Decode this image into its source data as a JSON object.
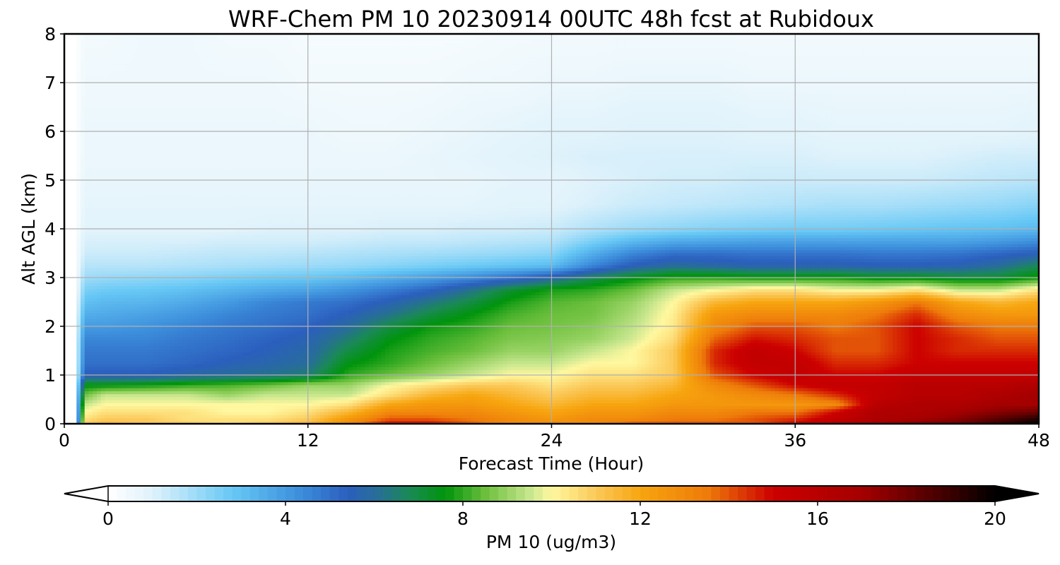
{
  "chart_data": {
    "type": "heatmap",
    "title": "WRF-Chem PM 10  20230914 00UTC 48h fcst at Rubidoux",
    "xlabel": "Forecast Time (Hour)",
    "ylabel": "Alt AGL (km)",
    "xlim": [
      0,
      48
    ],
    "ylim": [
      0,
      8
    ],
    "x_ticks": [
      "0",
      "12",
      "24",
      "36",
      "48"
    ],
    "y_ticks": [
      "0",
      "1",
      "2",
      "3",
      "4",
      "5",
      "6",
      "7",
      "8"
    ],
    "grid": true,
    "colorbar": {
      "label": "PM 10  (ug/m3)",
      "orientation": "horizontal",
      "placement": "bottom",
      "extend": "both",
      "min": 0,
      "max": 20,
      "ticks": [
        "0",
        "4",
        "8",
        "12",
        "16",
        "20"
      ],
      "color_stops": [
        {
          "value": 0,
          "color": "#ffffff"
        },
        {
          "value": 1,
          "color": "#dff2fb"
        },
        {
          "value": 2.8,
          "color": "#67c8f5"
        },
        {
          "value": 4.3,
          "color": "#3d8fdc"
        },
        {
          "value": 5.4,
          "color": "#2b5fbe"
        },
        {
          "value": 6.1,
          "color": "#276f95"
        },
        {
          "value": 6.8,
          "color": "#1a8a55"
        },
        {
          "value": 7.6,
          "color": "#00940c"
        },
        {
          "value": 8.5,
          "color": "#6bbf3c"
        },
        {
          "value": 9.5,
          "color": "#c6e68d"
        },
        {
          "value": 10,
          "color": "#fff8a0"
        },
        {
          "value": 11,
          "color": "#fbc95a"
        },
        {
          "value": 12,
          "color": "#f7a50f"
        },
        {
          "value": 13.5,
          "color": "#ee7c0a"
        },
        {
          "value": 15,
          "color": "#cc0000"
        },
        {
          "value": 17,
          "color": "#a40000"
        },
        {
          "value": 19,
          "color": "#3a0000"
        },
        {
          "value": 20,
          "color": "#000000"
        }
      ]
    },
    "x": [
      0,
      0.5,
      1,
      2,
      4,
      6,
      8,
      10,
      12,
      14,
      16,
      18,
      20,
      22,
      24,
      26,
      28,
      30,
      32,
      34,
      36,
      38,
      40,
      42,
      44,
      46,
      48
    ],
    "y": [
      0,
      0.1,
      0.25,
      0.4,
      0.6,
      0.8,
      1,
      1.25,
      1.5,
      1.75,
      2,
      2.25,
      2.5,
      2.75,
      3,
      3.25,
      3.5,
      3.75,
      4,
      4.5,
      5,
      5.5,
      6,
      7,
      8
    ],
    "z": [
      [
        0,
        0,
        11,
        11.5,
        11,
        11,
        10.5,
        11,
        11.5,
        13,
        15,
        15,
        14,
        13,
        13,
        13,
        14,
        14,
        14,
        14,
        15,
        16,
        17,
        17.5,
        18,
        19,
        20
      ],
      [
        0,
        0,
        10.5,
        11,
        11,
        10.5,
        10.5,
        10.5,
        11,
        12.5,
        14,
        14,
        13.5,
        13,
        12.5,
        13,
        13,
        13.5,
        13.5,
        14,
        14.5,
        15.5,
        16.5,
        17,
        17.5,
        18.5,
        19.5
      ],
      [
        0,
        0,
        10,
        10.5,
        10.5,
        10.5,
        10,
        10,
        10.5,
        11.5,
        13,
        13,
        13,
        12.5,
        12,
        12.5,
        12.5,
        13,
        13,
        13.5,
        13.5,
        15,
        16.5,
        16.5,
        17,
        17.5,
        18
      ],
      [
        0,
        0,
        9.5,
        10,
        10,
        10,
        10,
        10,
        10,
        10.5,
        12,
        12.5,
        12.5,
        12,
        11.5,
        12,
        12,
        12.5,
        12.5,
        12.5,
        12.5,
        13,
        16,
        16.5,
        16.5,
        17,
        17
      ],
      [
        0,
        0,
        8.5,
        9.5,
        9.5,
        9.5,
        9,
        9.5,
        9.5,
        9.5,
        10.5,
        11.5,
        12,
        11.5,
        11,
        11.5,
        11.5,
        12,
        12.5,
        13,
        13.5,
        14.5,
        15.5,
        16,
        16,
        16.5,
        17
      ],
      [
        0,
        0,
        7.5,
        7.5,
        7.7,
        8,
        8.2,
        8.5,
        9,
        9,
        10,
        10.5,
        11,
        11,
        10.5,
        11,
        11,
        11.5,
        13,
        14,
        15,
        15.5,
        15.5,
        16,
        16,
        16,
        16.5
      ],
      [
        0,
        0,
        5.5,
        5.5,
        5.5,
        5.8,
        6,
        6.2,
        6.5,
        8,
        8.5,
        9,
        9.5,
        10,
        10,
        10.5,
        10.5,
        11,
        14,
        15,
        15.5,
        15,
        15,
        15.5,
        15.5,
        15.5,
        15.5
      ],
      [
        0,
        0,
        5,
        5,
        5,
        5.2,
        5.5,
        5.7,
        6,
        7.5,
        8,
        8.5,
        9,
        9.5,
        9.5,
        10,
        10,
        11,
        14.5,
        15.5,
        15.5,
        14.5,
        14.5,
        15,
        15,
        15,
        15
      ],
      [
        0,
        0,
        4.8,
        4.8,
        4.8,
        5,
        5.2,
        5.5,
        5.8,
        7,
        7.8,
        8.2,
        8.5,
        9,
        9,
        9.5,
        10,
        11,
        14.5,
        15.5,
        15,
        14,
        14,
        15,
        14.5,
        14.5,
        14.5
      ],
      [
        0,
        0,
        4.5,
        4.5,
        4.5,
        4.8,
        5,
        5.3,
        5.6,
        6.5,
        7.5,
        8,
        8.3,
        8.7,
        8.8,
        9,
        9.6,
        10.6,
        13.8,
        14.8,
        14.5,
        14,
        14,
        15,
        14.5,
        14,
        14
      ],
      [
        0,
        0,
        4,
        4,
        4.2,
        4.5,
        4.8,
        5,
        5.3,
        6,
        7,
        7.7,
        8,
        8.5,
        8.6,
        8.8,
        9.4,
        10.3,
        13,
        14,
        14,
        13.5,
        14,
        15,
        14,
        13.5,
        13.5
      ],
      [
        0,
        0,
        3.5,
        3.6,
        3.8,
        4.1,
        4.5,
        4.8,
        5,
        5.5,
        6.2,
        7,
        7.6,
        8.2,
        8.5,
        8.6,
        9.2,
        10.2,
        12.5,
        13,
        13,
        13,
        13.5,
        14.5,
        13,
        12.5,
        12.5
      ],
      [
        0,
        0,
        3,
        3.2,
        3.3,
        3.6,
        4,
        4.5,
        4.8,
        5,
        5.6,
        6.3,
        7,
        7.8,
        8.3,
        8.5,
        9,
        10,
        11.5,
        12,
        12,
        12,
        12.5,
        13.5,
        12,
        11.5,
        12
      ],
      [
        0,
        0,
        2.5,
        2.7,
        2.8,
        3,
        3.3,
        3.6,
        3.8,
        4.2,
        4.7,
        5.3,
        6.2,
        7.2,
        7.8,
        8,
        8.5,
        9.5,
        10,
        10.5,
        10.5,
        10,
        10,
        10.5,
        9.5,
        9.5,
        10.5
      ],
      [
        0,
        0,
        2,
        2.1,
        2.2,
        2.3,
        2.5,
        2.7,
        2.8,
        3.1,
        3.5,
        3.9,
        4.4,
        5,
        5.8,
        6.8,
        7.5,
        8,
        8,
        7.8,
        7.8,
        7.8,
        7.5,
        7.5,
        7.2,
        7.2,
        7.8
      ],
      [
        0,
        0,
        1.6,
        1.6,
        1.6,
        1.7,
        1.8,
        1.9,
        2,
        2.1,
        2.3,
        2.5,
        2.7,
        2.9,
        3.1,
        4.5,
        5.5,
        6,
        5.8,
        5.6,
        5.6,
        5.6,
        5.5,
        5.5,
        5.6,
        6,
        6.8
      ],
      [
        0,
        0,
        1.3,
        1.3,
        1.3,
        1.4,
        1.5,
        1.5,
        1.6,
        1.7,
        1.8,
        1.9,
        2,
        2.1,
        2.3,
        3.5,
        4.5,
        5,
        5,
        4.9,
        4.9,
        4.9,
        4.8,
        4.8,
        4.9,
        5.2,
        5.5
      ],
      [
        0,
        0,
        1.1,
        1.1,
        1.1,
        1.1,
        1.2,
        1.2,
        1.2,
        1.3,
        1.4,
        1.4,
        1.5,
        1.6,
        1.7,
        2.5,
        3.2,
        3.6,
        3.7,
        3.8,
        3.8,
        3.8,
        3.8,
        3.8,
        3.8,
        4,
        4.3
      ],
      [
        0,
        0,
        0.9,
        0.9,
        0.9,
        0.9,
        0.9,
        1,
        1,
        1,
        1.1,
        1.1,
        1.2,
        1.2,
        1.3,
        1.7,
        2,
        2.2,
        2.4,
        2.5,
        2.6,
        2.6,
        2.7,
        2.8,
        2.9,
        3,
        3.2
      ],
      [
        0,
        0,
        0.8,
        0.8,
        0.8,
        0.8,
        0.8,
        0.8,
        0.8,
        0.8,
        0.8,
        0.8,
        0.8,
        0.9,
        0.9,
        1.1,
        1.3,
        1.4,
        1.5,
        1.6,
        1.7,
        1.8,
        1.8,
        1.9,
        2,
        2.1,
        2.3
      ],
      [
        0,
        0,
        0.7,
        0.7,
        0.7,
        0.7,
        0.7,
        0.7,
        0.7,
        0.7,
        0.7,
        0.7,
        0.7,
        0.8,
        0.8,
        1,
        1.1,
        1.2,
        1.2,
        1.3,
        1.3,
        1.3,
        1.3,
        1.3,
        1.4,
        1.5,
        1.6
      ],
      [
        0,
        0,
        0.6,
        0.6,
        0.6,
        0.6,
        0.6,
        0.6,
        0.6,
        0.6,
        0.6,
        0.7,
        0.8,
        0.9,
        1,
        1.1,
        1.1,
        1.1,
        1.1,
        1.1,
        1.1,
        1,
        1,
        1,
        1.1,
        1.2,
        1.2
      ],
      [
        0,
        0,
        0.6,
        0.6,
        0.6,
        0.6,
        0.6,
        0.6,
        0.6,
        0.5,
        0.5,
        0.6,
        0.7,
        0.8,
        0.9,
        0.9,
        1,
        1,
        1,
        0.9,
        0.9,
        0.8,
        0.8,
        0.8,
        0.8,
        0.8,
        0.9
      ],
      [
        0,
        0,
        0.5,
        0.5,
        0.5,
        0.5,
        0.5,
        0.5,
        0.4,
        0.4,
        0.4,
        0.4,
        0.5,
        0.5,
        0.6,
        0.6,
        0.7,
        0.7,
        0.7,
        0.6,
        0.6,
        0.6,
        0.6,
        0.6,
        0.6,
        0.6,
        0.6
      ],
      [
        0,
        0,
        0.4,
        0.4,
        0.5,
        0.5,
        0.4,
        0.4,
        0.3,
        0.3,
        0.3,
        0.3,
        0.3,
        0.4,
        0.4,
        0.4,
        0.4,
        0.4,
        0.4,
        0.4,
        0.4,
        0.4,
        0.4,
        0.4,
        0.4,
        0.4,
        0.4
      ]
    ]
  }
}
